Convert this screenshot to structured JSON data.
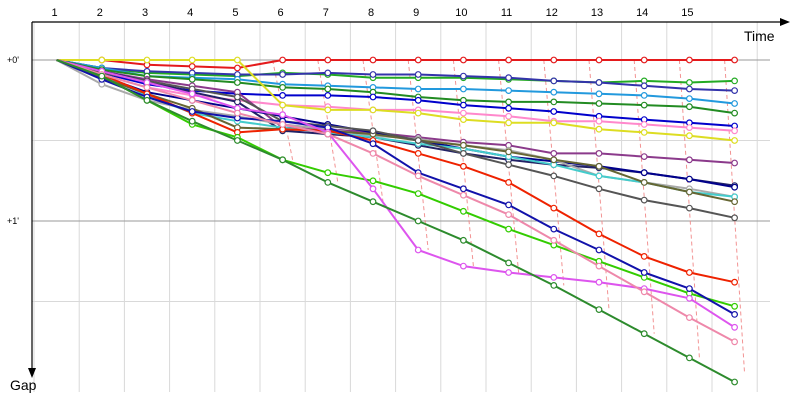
{
  "chart_data": {
    "type": "line",
    "x_title": "Time",
    "y_title": "Gap",
    "laps": [
      "1",
      "2",
      "3",
      "4",
      "5",
      "6",
      "7",
      "8",
      "9",
      "10",
      "11",
      "12",
      "13",
      "14",
      "15"
    ],
    "y_ticks": [
      {
        "value": 0,
        "label": "+0'"
      },
      {
        "value": 1,
        "label": "+1'"
      }
    ],
    "y_gridlines": [
      0,
      0.5,
      1,
      1.5
    ],
    "ylim": [
      -0.2,
      1.85
    ],
    "grid": "on",
    "pit_line_color": "#f08080",
    "series": [
      {
        "color": "#e41a1c",
        "values": [
          0.0,
          0.0,
          0.03,
          0.04,
          0.05,
          0.0,
          0.0,
          0.0,
          0.0,
          0.0,
          0.0,
          0.0,
          0.0,
          0.0,
          0.0,
          0.0
        ]
      },
      {
        "color": "#22aa22",
        "values": [
          0.0,
          0.05,
          0.08,
          0.09,
          0.1,
          0.08,
          0.09,
          0.11,
          0.11,
          0.11,
          0.12,
          0.13,
          0.14,
          0.13,
          0.14,
          0.13
        ]
      },
      {
        "color": "#3333aa",
        "values": [
          0.0,
          0.05,
          0.07,
          0.08,
          0.09,
          0.09,
          0.08,
          0.09,
          0.09,
          0.1,
          0.11,
          0.13,
          0.14,
          0.16,
          0.18,
          0.19
        ]
      },
      {
        "color": "#2299dd",
        "values": [
          0.0,
          0.05,
          0.1,
          0.11,
          0.12,
          0.15,
          0.16,
          0.17,
          0.18,
          0.18,
          0.19,
          0.2,
          0.21,
          0.22,
          0.24,
          0.27
        ]
      },
      {
        "color": "#228b22",
        "values": [
          0.0,
          0.06,
          0.1,
          0.12,
          0.14,
          0.17,
          0.18,
          0.2,
          0.23,
          0.25,
          0.26,
          0.26,
          0.27,
          0.28,
          0.29,
          0.33
        ]
      },
      {
        "color": "#0000cc",
        "values": [
          0.0,
          0.08,
          0.15,
          0.19,
          0.21,
          0.22,
          0.22,
          0.23,
          0.25,
          0.28,
          0.3,
          0.32,
          0.35,
          0.37,
          0.39,
          0.41
        ]
      },
      {
        "color": "#ff88cc",
        "values": [
          0.0,
          0.09,
          0.17,
          0.22,
          0.25,
          0.28,
          0.29,
          0.31,
          0.31,
          0.33,
          0.35,
          0.38,
          0.38,
          0.4,
          0.42,
          0.44
        ]
      },
      {
        "color": "#dddd22",
        "values": [
          0.0,
          0.0,
          0.0,
          0.0,
          0.0,
          0.28,
          0.31,
          0.31,
          0.33,
          0.37,
          0.39,
          0.39,
          0.43,
          0.45,
          0.47,
          0.5
        ]
      },
      {
        "color": "#8b3a8b",
        "values": [
          0.0,
          0.07,
          0.12,
          0.16,
          0.2,
          0.42,
          0.43,
          0.45,
          0.48,
          0.51,
          0.53,
          0.58,
          0.58,
          0.6,
          0.62,
          0.64
        ]
      },
      {
        "color": "#222266",
        "values": [
          0.0,
          0.07,
          0.13,
          0.2,
          0.26,
          0.44,
          0.46,
          0.48,
          0.53,
          0.58,
          0.62,
          0.65,
          0.67,
          0.7,
          0.74,
          0.78
        ]
      },
      {
        "color": "#00008b",
        "values": [
          0.0,
          0.1,
          0.2,
          0.25,
          0.3,
          0.35,
          0.4,
          0.45,
          0.5,
          0.55,
          0.6,
          0.63,
          0.66,
          0.7,
          0.74,
          0.79
        ]
      },
      {
        "color": "#aaaaaa",
        "values": [
          0.0,
          0.15,
          0.25,
          0.31,
          0.35,
          0.4,
          0.43,
          0.47,
          0.49,
          0.53,
          0.56,
          0.62,
          0.72,
          0.76,
          0.8,
          0.85
        ]
      },
      {
        "color": "#44cccc",
        "values": [
          0.0,
          0.09,
          0.22,
          0.33,
          0.38,
          0.42,
          0.45,
          0.48,
          0.52,
          0.55,
          0.6,
          0.65,
          0.72,
          0.76,
          0.82,
          0.85
        ]
      },
      {
        "color": "#666633",
        "values": [
          0.0,
          0.11,
          0.21,
          0.3,
          0.42,
          0.43,
          0.44,
          0.46,
          0.5,
          0.53,
          0.57,
          0.62,
          0.66,
          0.76,
          0.82,
          0.88
        ]
      },
      {
        "color": "#555555",
        "values": [
          0.0,
          0.08,
          0.13,
          0.18,
          0.23,
          0.38,
          0.41,
          0.44,
          0.5,
          0.58,
          0.65,
          0.72,
          0.8,
          0.87,
          0.92,
          0.98
        ]
      },
      {
        "color": "#ee2200",
        "values": [
          0.0,
          0.09,
          0.21,
          0.33,
          0.45,
          0.43,
          0.44,
          0.5,
          0.58,
          0.66,
          0.76,
          0.92,
          1.08,
          1.22,
          1.32,
          1.38
        ]
      },
      {
        "color": "#33cc00",
        "values": [
          0.0,
          0.1,
          0.25,
          0.4,
          0.48,
          0.62,
          0.7,
          0.75,
          0.83,
          0.94,
          1.05,
          1.15,
          1.25,
          1.35,
          1.45,
          1.53
        ]
      },
      {
        "color": "#1111aa",
        "values": [
          0.0,
          0.12,
          0.23,
          0.32,
          0.36,
          0.38,
          0.42,
          0.52,
          0.7,
          0.8,
          0.9,
          1.05,
          1.18,
          1.32,
          1.42,
          1.58
        ]
      },
      {
        "color": "#dd55ee",
        "values": [
          0.0,
          0.07,
          0.14,
          0.21,
          0.3,
          0.34,
          0.45,
          0.8,
          1.18,
          1.28,
          1.32,
          1.35,
          1.38,
          1.42,
          1.48,
          1.66
        ]
      },
      {
        "color": "#ee88aa",
        "values": [
          0.0,
          0.09,
          0.17,
          0.25,
          0.33,
          0.4,
          0.46,
          0.58,
          0.72,
          0.84,
          0.96,
          1.12,
          1.28,
          1.44,
          1.6,
          1.75
        ]
      },
      {
        "color": "#2d8b2d",
        "values": [
          0.0,
          0.1,
          0.25,
          0.38,
          0.5,
          0.62,
          0.76,
          0.88,
          1.0,
          1.12,
          1.26,
          1.4,
          1.55,
          1.7,
          1.85,
          2.0
        ]
      }
    ]
  }
}
